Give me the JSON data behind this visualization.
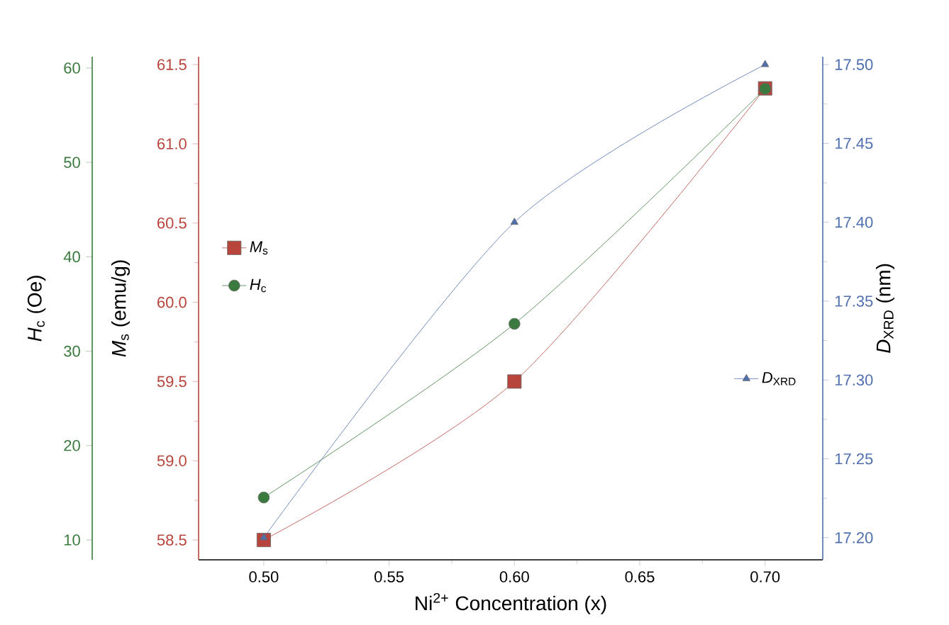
{
  "chart_data": {
    "type": "line",
    "xlabel": "Ni$^{2+}$ Concentration (x)",
    "ylabel": "*M*$_{s}$ (emu/g)",
    "y2label": "*D*$_{XRD}$ (nm)",
    "y3label": "*H*$_{c}$ (Oe)",
    "x": [
      0.5,
      0.6,
      0.7
    ],
    "xlim": [
      0.474,
      0.723
    ],
    "xticks": [
      {
        "value": 0.5,
        "label": "0.50"
      },
      {
        "value": 0.55,
        "label": "0.55"
      },
      {
        "value": 0.6,
        "label": "0.60"
      },
      {
        "value": 0.65,
        "label": "0.65"
      },
      {
        "value": 0.7,
        "label": "0.70"
      }
    ],
    "ylim": [
      58.375,
      61.55
    ],
    "yticks": [
      {
        "value": 58.5,
        "label": "58.5"
      },
      {
        "value": 59.0,
        "label": "59.0"
      },
      {
        "value": 59.5,
        "label": "59.5"
      },
      {
        "value": 60.0,
        "label": "60.0"
      },
      {
        "value": 60.5,
        "label": "60.5"
      },
      {
        "value": 61.0,
        "label": "61.0"
      },
      {
        "value": 61.5,
        "label": "61.5"
      }
    ],
    "y2lim": [
      17.186,
      17.505
    ],
    "y2ticks": [
      {
        "value": 17.2,
        "label": "17.20"
      },
      {
        "value": 17.25,
        "label": "17.25"
      },
      {
        "value": 17.3,
        "label": "17.30"
      },
      {
        "value": 17.35,
        "label": "17.35"
      },
      {
        "value": 17.4,
        "label": "17.40"
      },
      {
        "value": 17.45,
        "label": "17.45"
      },
      {
        "value": 17.5,
        "label": "17.50"
      }
    ],
    "y3lim": [
      7.9,
      61.2
    ],
    "y3ticks": [
      10,
      20,
      30,
      40,
      50,
      60
    ],
    "line_style": "solid",
    "legend": "left",
    "series": [
      {
        "name": "*M*$_{s}$",
        "color": "#b8453c",
        "marker": "square",
        "values": [
          58.5,
          59.5,
          61.35
        ]
      },
      {
        "name": "*H*$_{c}$",
        "color": "#3b7a3e",
        "marker": "circle",
        "axis": "y3",
        "values": [
          14.5,
          32.9,
          57.8
        ]
      },
      {
        "name": "*D*$_{XRD}$",
        "color": "#4f6fae",
        "marker": "triangle",
        "axis": "y2",
        "values": [
          17.2,
          17.4,
          17.5
        ]
      }
    ]
  }
}
